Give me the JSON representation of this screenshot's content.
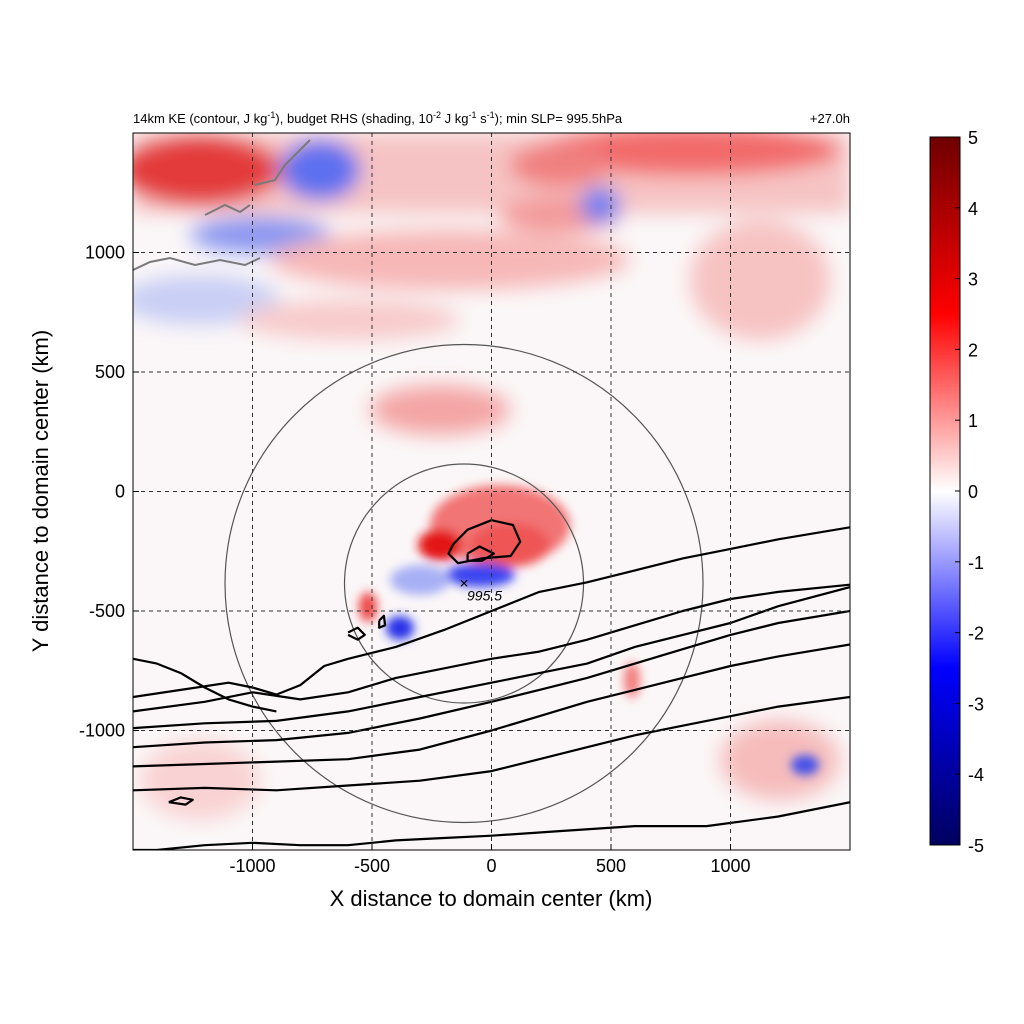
{
  "chart_data": {
    "type": "heatmap",
    "title_parts": {
      "a": "14km KE (contour, J kg",
      "a_sup": "-1",
      "b": "), budget RHS (shading, 10",
      "b_sup": "-2",
      "c": " J kg",
      "c_sup": "-1",
      "d": " s",
      "d_sup": "-1",
      "e": "); min SLP= 995.5hPa"
    },
    "time_label": "+27.0h",
    "xlabel": "X distance to domain center (km)",
    "ylabel": "Y distance to domain center (km)",
    "xlim": [
      -1500,
      1500
    ],
    "ylim": [
      -1500,
      1500
    ],
    "x_ticks": [
      -1000,
      -500,
      0,
      500,
      1000
    ],
    "y_ticks": [
      1000,
      500,
      0,
      -500,
      -1000
    ],
    "x_tick_labels": [
      "-1000",
      "-500",
      "0",
      "500",
      "1000"
    ],
    "y_tick_labels": [
      "1000",
      "500",
      "0",
      "-500",
      "-1000"
    ],
    "grid": true,
    "colorbar": {
      "min": -5,
      "max": 5,
      "ticks": [
        5,
        4,
        3,
        2,
        1,
        0,
        -1,
        -2,
        -3,
        -4,
        -5
      ],
      "tick_labels": [
        "5",
        "4",
        "3",
        "2",
        "1",
        "0",
        "-1",
        "-2",
        "-3",
        "-4",
        "-5"
      ],
      "colormap": [
        "#00005e",
        "#0000ff",
        "#ffffff",
        "#ff0000",
        "#6e0000"
      ]
    },
    "storm_center": {
      "x": -115,
      "y": -385,
      "label": "995.5"
    },
    "range_circles": [
      {
        "center": [
          -115,
          -385
        ],
        "radius_km": 500
      },
      {
        "center": [
          -115,
          -385
        ],
        "radius_km": 1000
      }
    ],
    "ke_contours": [
      {
        "id": "c1",
        "points": [
          [
            -1500,
            -1500
          ],
          [
            -1400,
            -1500
          ],
          [
            -1200,
            -1480
          ],
          [
            -1000,
            -1470
          ],
          [
            -800,
            -1480
          ],
          [
            -600,
            -1480
          ],
          [
            -400,
            -1460
          ],
          [
            -200,
            -1450
          ],
          [
            0,
            -1440
          ],
          [
            300,
            -1420
          ],
          [
            600,
            -1400
          ],
          [
            900,
            -1400
          ],
          [
            1200,
            -1360
          ],
          [
            1500,
            -1300
          ]
        ]
      },
      {
        "id": "c2",
        "points": [
          [
            -1500,
            -1250
          ],
          [
            -1200,
            -1240
          ],
          [
            -900,
            -1250
          ],
          [
            -600,
            -1230
          ],
          [
            -300,
            -1210
          ],
          [
            0,
            -1170
          ],
          [
            200,
            -1120
          ],
          [
            400,
            -1070
          ],
          [
            600,
            -1020
          ],
          [
            800,
            -980
          ],
          [
            1000,
            -940
          ],
          [
            1200,
            -900
          ],
          [
            1500,
            -860
          ]
        ]
      },
      {
        "id": "c3",
        "points": [
          [
            -1500,
            -1150
          ],
          [
            -1200,
            -1140
          ],
          [
            -900,
            -1130
          ],
          [
            -600,
            -1120
          ],
          [
            -300,
            -1080
          ],
          [
            0,
            -1000
          ],
          [
            200,
            -940
          ],
          [
            400,
            -880
          ],
          [
            600,
            -830
          ],
          [
            800,
            -780
          ],
          [
            1000,
            -730
          ],
          [
            1200,
            -690
          ],
          [
            1500,
            -640
          ]
        ]
      },
      {
        "id": "c4",
        "points": [
          [
            -1500,
            -1070
          ],
          [
            -1200,
            -1050
          ],
          [
            -900,
            -1040
          ],
          [
            -600,
            -1010
          ],
          [
            -300,
            -950
          ],
          [
            0,
            -880
          ],
          [
            200,
            -830
          ],
          [
            400,
            -780
          ],
          [
            600,
            -720
          ],
          [
            800,
            -660
          ],
          [
            1000,
            -600
          ],
          [
            1200,
            -550
          ],
          [
            1500,
            -500
          ]
        ]
      },
      {
        "id": "c5",
        "points": [
          [
            -1500,
            -990
          ],
          [
            -1200,
            -970
          ],
          [
            -900,
            -960
          ],
          [
            -600,
            -920
          ],
          [
            -300,
            -860
          ],
          [
            0,
            -800
          ],
          [
            200,
            -760
          ],
          [
            400,
            -720
          ],
          [
            600,
            -650
          ],
          [
            800,
            -600
          ],
          [
            1000,
            -550
          ],
          [
            1200,
            -480
          ],
          [
            1500,
            -400
          ]
        ]
      },
      {
        "id": "c6",
        "points": [
          [
            -1500,
            -920
          ],
          [
            -1200,
            -880
          ],
          [
            -1000,
            -840
          ],
          [
            -800,
            -870
          ],
          [
            -600,
            -840
          ],
          [
            -400,
            -780
          ],
          [
            -200,
            -740
          ],
          [
            0,
            -700
          ],
          [
            200,
            -670
          ],
          [
            400,
            -620
          ],
          [
            600,
            -560
          ],
          [
            800,
            -500
          ],
          [
            1000,
            -450
          ],
          [
            1200,
            -420
          ],
          [
            1500,
            -390
          ]
        ]
      },
      {
        "id": "c7",
        "points": [
          [
            -1500,
            -860
          ],
          [
            -1300,
            -830
          ],
          [
            -1100,
            -800
          ],
          [
            -1000,
            -820
          ],
          [
            -900,
            -850
          ],
          [
            -800,
            -810
          ],
          [
            -700,
            -730
          ],
          [
            -600,
            -700
          ],
          [
            -400,
            -650
          ],
          [
            -200,
            -580
          ],
          [
            0,
            -500
          ],
          [
            200,
            -420
          ],
          [
            400,
            -380
          ],
          [
            600,
            -330
          ],
          [
            800,
            -280
          ],
          [
            1000,
            -240
          ],
          [
            1200,
            -200
          ],
          [
            1500,
            -150
          ]
        ]
      },
      {
        "id": "c8",
        "points": [
          [
            -1500,
            -700
          ],
          [
            -1400,
            -720
          ],
          [
            -1300,
            -760
          ],
          [
            -1200,
            -820
          ],
          [
            -1100,
            -870
          ],
          [
            -1000,
            -900
          ],
          [
            -900,
            -920
          ]
        ]
      },
      {
        "id": "core1",
        "points": [
          [
            -1350,
            -1300
          ],
          [
            -1300,
            -1280
          ],
          [
            -1250,
            -1290
          ],
          [
            -1280,
            -1310
          ],
          [
            -1350,
            -1300
          ]
        ]
      },
      {
        "id": "tc1",
        "points": [
          [
            -160,
            -220
          ],
          [
            -100,
            -160
          ],
          [
            0,
            -120
          ],
          [
            90,
            -140
          ],
          [
            120,
            -210
          ],
          [
            80,
            -270
          ],
          [
            -40,
            -280
          ],
          [
            -140,
            -300
          ],
          [
            -180,
            -260
          ],
          [
            -160,
            -220
          ]
        ]
      },
      {
        "id": "tc2",
        "points": [
          [
            -100,
            -260
          ],
          [
            -50,
            -230
          ],
          [
            10,
            -260
          ],
          [
            -40,
            -290
          ],
          [
            -100,
            -290
          ],
          [
            -100,
            -260
          ]
        ]
      },
      {
        "id": "tc3",
        "points": [
          [
            -600,
            -590
          ],
          [
            -560,
            -570
          ],
          [
            -530,
            -600
          ],
          [
            -560,
            -620
          ],
          [
            -600,
            -600
          ]
        ]
      },
      {
        "id": "tc4",
        "points": [
          [
            -470,
            -540
          ],
          [
            -450,
            -520
          ],
          [
            -445,
            -560
          ],
          [
            -470,
            -570
          ],
          [
            -470,
            -540
          ]
        ]
      }
    ]
  }
}
